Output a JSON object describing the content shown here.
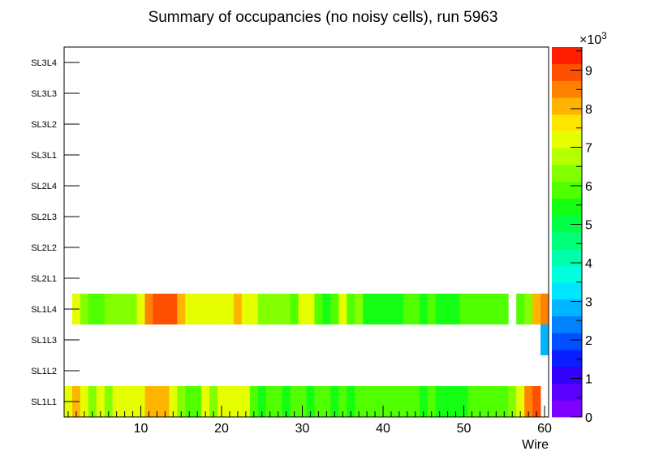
{
  "chart_data": {
    "type": "heatmap",
    "title": "Summary of occupancies (no noisy cells), run 5963",
    "xlabel": "Wire",
    "ylabel": "",
    "xlim": [
      0.5,
      60.5
    ],
    "xticks": [
      10,
      20,
      30,
      40,
      50,
      60
    ],
    "ylabels": [
      "SL1L1",
      "SL1L2",
      "SL1L3",
      "SL1L4",
      "SL2L1",
      "SL2L2",
      "SL2L3",
      "SL2L4",
      "SL3L1",
      "SL3L2",
      "SL3L3",
      "SL3L4"
    ],
    "zlim": [
      0,
      9600
    ],
    "zticks": [
      0,
      1,
      2,
      3,
      4,
      5,
      6,
      7,
      8,
      9
    ],
    "zmultiplier": "×10",
    "zexponent": "3",
    "rows": [
      {
        "layer": "SL1L1",
        "values": [
          7000,
          8000,
          7000,
          6500,
          7000,
          6500,
          7000,
          7000,
          7000,
          7000,
          8000,
          8000,
          8000,
          7000,
          6500,
          6000,
          6000,
          7000,
          6500,
          7000,
          7000,
          7000,
          7000,
          6000,
          5500,
          6000,
          6000,
          5500,
          6000,
          6000,
          5500,
          6000,
          6000,
          5500,
          6000,
          5500,
          6000,
          6000,
          6000,
          6000,
          6000,
          6000,
          6000,
          6000,
          5500,
          6000,
          5500,
          5500,
          5500,
          5500,
          6000,
          6000,
          6000,
          6000,
          6000,
          6500,
          7000,
          8500,
          9000,
          0
        ]
      },
      {
        "layer": "SL1L2",
        "values": [
          0,
          0,
          0,
          0,
          0,
          0,
          0,
          0,
          0,
          0,
          0,
          0,
          0,
          0,
          0,
          0,
          0,
          0,
          0,
          0,
          0,
          0,
          0,
          0,
          0,
          0,
          0,
          0,
          0,
          0,
          0,
          0,
          0,
          0,
          0,
          0,
          0,
          0,
          0,
          0,
          0,
          0,
          0,
          0,
          0,
          0,
          0,
          0,
          0,
          0,
          0,
          0,
          0,
          0,
          0,
          0,
          0,
          0,
          0,
          0
        ]
      },
      {
        "layer": "SL1L3",
        "values": [
          0,
          0,
          0,
          0,
          0,
          0,
          0,
          0,
          0,
          0,
          0,
          0,
          0,
          0,
          0,
          0,
          0,
          0,
          0,
          0,
          0,
          0,
          0,
          0,
          0,
          0,
          0,
          0,
          0,
          0,
          0,
          0,
          0,
          0,
          0,
          0,
          0,
          0,
          0,
          0,
          0,
          0,
          0,
          0,
          0,
          0,
          0,
          0,
          0,
          0,
          0,
          0,
          0,
          0,
          0,
          0,
          0,
          0,
          0,
          3000
        ]
      },
      {
        "layer": "SL1L4",
        "values": [
          0,
          7000,
          6500,
          6000,
          6000,
          6500,
          6500,
          6500,
          6500,
          7000,
          8500,
          9000,
          9000,
          9000,
          8000,
          7000,
          7000,
          7000,
          7000,
          7000,
          7000,
          8000,
          7000,
          7000,
          6500,
          6500,
          6500,
          6500,
          6000,
          7000,
          7000,
          6000,
          5500,
          6000,
          7000,
          6000,
          6500,
          5500,
          5500,
          5500,
          5500,
          5500,
          6000,
          6000,
          5500,
          6000,
          5500,
          5500,
          5500,
          6000,
          6000,
          6000,
          6000,
          6000,
          6000,
          0,
          6000,
          6500,
          8000,
          8500
        ]
      },
      {
        "layer": "SL2L1",
        "values": []
      },
      {
        "layer": "SL2L2",
        "values": []
      },
      {
        "layer": "SL2L3",
        "values": []
      },
      {
        "layer": "SL2L4",
        "values": []
      },
      {
        "layer": "SL3L1",
        "values": []
      },
      {
        "layer": "SL3L2",
        "values": []
      },
      {
        "layer": "SL3L3",
        "values": []
      },
      {
        "layer": "SL3L4",
        "values": []
      }
    ],
    "palette": [
      "#7f00ff",
      "#5a00ff",
      "#3200ff",
      "#0a1eff",
      "#0050ff",
      "#0082ff",
      "#00b4ff",
      "#00e6ff",
      "#00ffdc",
      "#00ffaa",
      "#00ff78",
      "#00ff46",
      "#14ff14",
      "#50ff00",
      "#82ff00",
      "#b4ff00",
      "#e6ff00",
      "#ffe600",
      "#ffb400",
      "#ff8200",
      "#ff5000",
      "#ff1e00"
    ]
  }
}
